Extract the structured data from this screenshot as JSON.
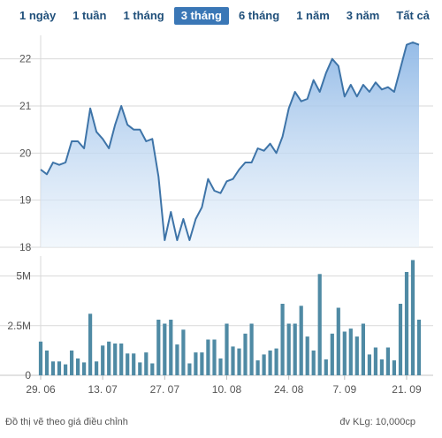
{
  "tabs": [
    {
      "label": "1 ngày",
      "active": false
    },
    {
      "label": "1 tuần",
      "active": false
    },
    {
      "label": "1 tháng",
      "active": false
    },
    {
      "label": "3 tháng",
      "active": true
    },
    {
      "label": "6 tháng",
      "active": false
    },
    {
      "label": "1 năm",
      "active": false
    },
    {
      "label": "3 năm",
      "active": false
    },
    {
      "label": "Tất cả",
      "active": false
    }
  ],
  "footer": {
    "note": "Đồ thị vẽ theo giá điều chỉnh",
    "unit": "đv KLg: 10,000cp"
  },
  "colors": {
    "price_line": "#3e74a8",
    "price_fill_top": "#8fb8e6",
    "volume_bar": "#4f8aa4",
    "grid": "#d9d9d9"
  },
  "chart_data": [
    {
      "type": "area",
      "name": "price",
      "ylim": [
        18,
        22.5
      ],
      "yticks": [
        "18",
        "19",
        "20",
        "21",
        "22"
      ],
      "values": [
        19.65,
        19.55,
        19.8,
        19.75,
        19.8,
        20.25,
        20.25,
        20.1,
        20.95,
        20.45,
        20.3,
        20.1,
        20.6,
        21.0,
        20.6,
        20.5,
        20.5,
        20.25,
        20.3,
        19.5,
        18.15,
        18.75,
        18.15,
        18.6,
        18.15,
        18.6,
        18.85,
        19.45,
        19.2,
        19.15,
        19.4,
        19.45,
        19.65,
        19.8,
        19.8,
        20.1,
        20.05,
        20.2,
        20.0,
        20.35,
        20.95,
        21.3,
        21.1,
        21.15,
        21.55,
        21.3,
        21.7,
        22.0,
        21.85,
        21.2,
        21.45,
        21.2,
        21.45,
        21.3,
        21.5,
        21.35,
        21.4,
        21.3,
        21.8,
        22.3,
        22.35,
        22.3
      ]
    },
    {
      "type": "bar",
      "name": "volume",
      "ylim": [
        0,
        6
      ],
      "yticks": [
        "0",
        "2.5M",
        "5M"
      ],
      "values": [
        1.7,
        1.25,
        0.7,
        0.7,
        0.55,
        1.25,
        0.85,
        0.65,
        3.1,
        0.7,
        1.5,
        1.7,
        1.6,
        1.6,
        1.1,
        1.1,
        0.65,
        1.15,
        0.6,
        2.8,
        2.6,
        2.8,
        1.55,
        2.3,
        0.6,
        1.15,
        1.15,
        1.8,
        1.8,
        0.85,
        2.6,
        1.45,
        1.35,
        2.1,
        2.6,
        0.75,
        1.05,
        1.25,
        1.35,
        3.6,
        2.6,
        2.6,
        3.5,
        1.95,
        1.25,
        5.1,
        0.8,
        2.1,
        3.4,
        2.2,
        2.35,
        1.95,
        2.6,
        1.05,
        1.4,
        0.8,
        1.4,
        0.75,
        3.6,
        5.2,
        5.8,
        2.8
      ],
      "xticks": [
        {
          "label": "29. 06",
          "index": 0
        },
        {
          "label": "13. 07",
          "index": 10
        },
        {
          "label": "27. 07",
          "index": 20
        },
        {
          "label": "10. 08",
          "index": 30
        },
        {
          "label": "24. 08",
          "index": 40
        },
        {
          "label": "7. 09",
          "index": 49
        },
        {
          "label": "21. 09",
          "index": 59
        }
      ]
    }
  ]
}
